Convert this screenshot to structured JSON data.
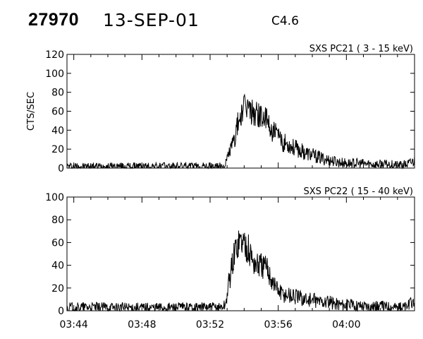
{
  "header": {
    "event_id": "27970",
    "date": "13-SEP-01",
    "flare_class": "C4.6"
  },
  "chart_data": [
    {
      "type": "line",
      "title": "SXS PC21  (  3 - 15 keV)",
      "ylabel": "CTS/SEC",
      "xlabel": "",
      "y_ticks": [
        "0",
        "20",
        "40",
        "60",
        "80",
        "100",
        "120"
      ],
      "ylim": [
        0,
        120
      ],
      "xlim": [
        "03:43.6",
        "04:04.0"
      ],
      "x_ticks": [],
      "grid": false,
      "series": [
        {
          "values": [
            [
              0.0,
              2
            ],
            [
              1.0,
              2
            ],
            [
              2.0,
              2
            ],
            [
              3.0,
              2
            ],
            [
              4.0,
              2
            ],
            [
              5.0,
              2
            ],
            [
              6.0,
              2
            ],
            [
              7.0,
              2
            ],
            [
              8.0,
              2
            ],
            [
              9.0,
              2
            ],
            [
              9.3,
              3
            ],
            [
              9.5,
              16
            ],
            [
              9.8,
              28
            ],
            [
              10.0,
              45
            ],
            [
              10.2,
              55
            ],
            [
              10.4,
              63
            ],
            [
              10.6,
              65
            ],
            [
              10.8,
              60
            ],
            [
              11.0,
              58
            ],
            [
              11.2,
              57
            ],
            [
              11.4,
              55
            ],
            [
              11.6,
              52
            ],
            [
              11.8,
              48
            ],
            [
              12.0,
              40
            ],
            [
              12.3,
              35
            ],
            [
              12.6,
              28
            ],
            [
              13.0,
              25
            ],
            [
              13.5,
              20
            ],
            [
              14.0,
              16
            ],
            [
              14.5,
              13
            ],
            [
              15.0,
              10
            ],
            [
              15.5,
              8
            ],
            [
              16.0,
              6
            ],
            [
              16.5,
              5
            ],
            [
              17.0,
              5
            ],
            [
              18.0,
              4
            ],
            [
              19.0,
              4
            ],
            [
              19.5,
              3
            ],
            [
              20.0,
              4
            ],
            [
              20.4,
              8
            ]
          ]
        }
      ]
    },
    {
      "type": "line",
      "title": "SXS PC22  ( 15 - 40 keV)",
      "ylabel": "",
      "xlabel": "",
      "y_ticks": [
        "0",
        "20",
        "40",
        "60",
        "80",
        "100"
      ],
      "ylim": [
        0,
        100
      ],
      "xlim": [
        "03:43.6",
        "04:04.0"
      ],
      "x_ticks": [
        "03:44",
        "03:48",
        "03:52",
        "03:56",
        "04:00"
      ],
      "grid": false,
      "series": [
        {
          "values": [
            [
              0.0,
              3
            ],
            [
              1.0,
              3
            ],
            [
              2.0,
              3
            ],
            [
              3.0,
              3
            ],
            [
              4.0,
              3
            ],
            [
              5.0,
              3
            ],
            [
              6.0,
              3
            ],
            [
              7.0,
              3
            ],
            [
              8.0,
              3
            ],
            [
              9.0,
              3
            ],
            [
              9.3,
              5
            ],
            [
              9.5,
              25
            ],
            [
              9.8,
              48
            ],
            [
              10.0,
              60
            ],
            [
              10.2,
              62
            ],
            [
              10.4,
              60
            ],
            [
              10.6,
              56
            ],
            [
              10.8,
              48
            ],
            [
              11.0,
              42
            ],
            [
              11.2,
              40
            ],
            [
              11.4,
              40
            ],
            [
              11.6,
              38
            ],
            [
              11.8,
              37
            ],
            [
              12.0,
              28
            ],
            [
              12.3,
              20
            ],
            [
              12.6,
              15
            ],
            [
              13.0,
              14
            ],
            [
              13.5,
              12
            ],
            [
              14.0,
              10
            ],
            [
              14.5,
              9
            ],
            [
              15.0,
              8
            ],
            [
              15.5,
              7
            ],
            [
              16.0,
              6
            ],
            [
              16.5,
              5
            ],
            [
              17.0,
              5
            ],
            [
              18.0,
              4
            ],
            [
              19.0,
              4
            ],
            [
              19.5,
              3
            ],
            [
              20.0,
              4
            ],
            [
              20.4,
              9
            ]
          ]
        }
      ]
    }
  ]
}
